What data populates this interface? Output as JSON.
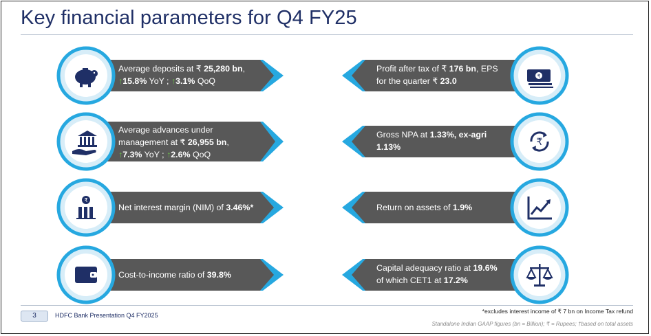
{
  "title": "Key financial parameters for Q4 FY25",
  "colors": {
    "navy": "#1f2f66",
    "ribbon": "#585858",
    "blue": "#26a8e0",
    "green": "#6cc24a"
  },
  "left": [
    {
      "icon": "piggy-bank-icon",
      "l1a": "Average deposits at ₹ ",
      "l1b": "25,280 bn",
      "l1c": ",",
      "up1": "↑",
      "v1": "15.8%",
      "s1": " YoY ; ",
      "up2": "↑",
      "v2": "3.1%",
      "s2": " QoQ"
    },
    {
      "icon": "bank-hand-icon",
      "l0": "Average advances under",
      "l1a": "management at ₹ ",
      "l1b": "26,955 bn",
      "l1c": ",",
      "up1": "↑",
      "v1": "7.3%",
      "s1": " YoY ; ",
      "up2": "↑",
      "v2": "2.6%",
      "s2": " QoQ"
    },
    {
      "icon": "rupee-bar-icon",
      "a": "Net interest margin (NIM) of ",
      "b": "3.46%*"
    },
    {
      "icon": "wallet-icon",
      "a": "Cost-to-income ratio of ",
      "b": "39.8%"
    }
  ],
  "right": [
    {
      "icon": "banknote-icon",
      "a": "Profit after tax of ₹ ",
      "b": "176 bn",
      "c": ", EPS",
      "d": "for the quarter ₹ ",
      "e": "23.0"
    },
    {
      "icon": "rupee-cycle-icon",
      "a": "Gross NPA at ",
      "b": "1.33%, ex-agri",
      "d": "",
      "e": "1.13%"
    },
    {
      "icon": "trend-chart-icon",
      "a": "Return on assets of ",
      "b": "1.9%"
    },
    {
      "icon": "scales-icon",
      "a": "Capital adequacy ratio at ",
      "b": "19.6%",
      "d": "of which CET1 at ",
      "e": "17.2%"
    }
  ],
  "footer": {
    "page": "3",
    "presentation": "HDFC Bank Presentation Q4 FY2025",
    "note1": "*excludes interest income of ₹ 7 bn on Income Tax refund",
    "note2": "Standalone Indian GAAP figures (bn = Billion); ₹  = Rupees; †based on total assets"
  }
}
